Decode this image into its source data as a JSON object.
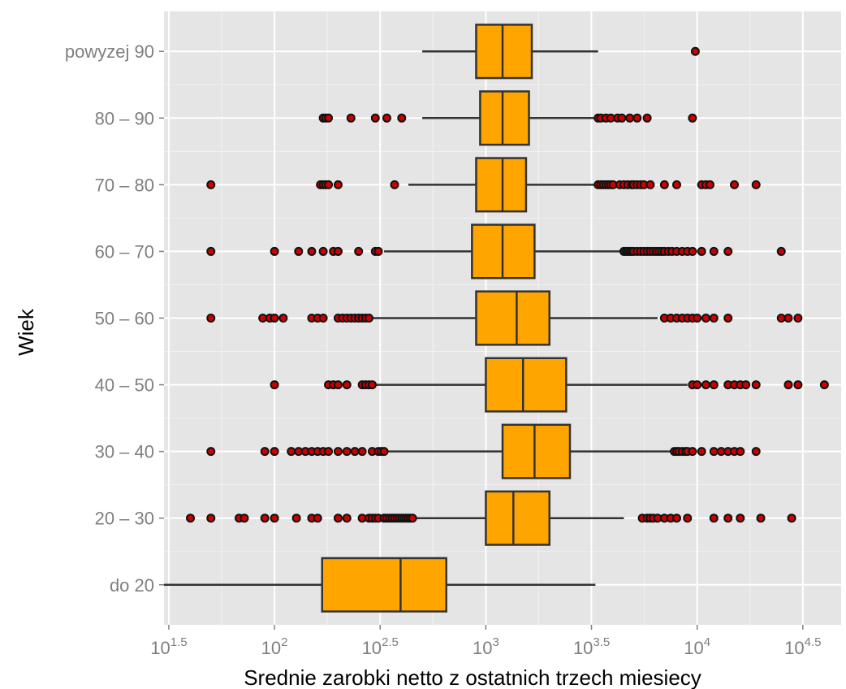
{
  "chart_data": {
    "type": "boxplot",
    "orientation": "horizontal",
    "xlabel": "Srednie zarobki netto z ostatnich trzech miesiecy",
    "ylabel": "Wiek",
    "x_scale": "log10",
    "xlim": [
      30,
      48000
    ],
    "x_ticks": [
      {
        "base": "10",
        "exp": "1.5",
        "value": 31.62
      },
      {
        "base": "10",
        "exp": "2",
        "value": 100
      },
      {
        "base": "10",
        "exp": "2.5",
        "value": 316.2
      },
      {
        "base": "10",
        "exp": "3",
        "value": 1000
      },
      {
        "base": "10",
        "exp": "3.5",
        "value": 3162
      },
      {
        "base": "10",
        "exp": "4",
        "value": 10000
      },
      {
        "base": "10",
        "exp": "4.5",
        "value": 31623
      }
    ],
    "categories": [
      "do 20",
      "20 – 30",
      "30 – 40",
      "40 – 50",
      "50 – 60",
      "60 – 70",
      "70 – 80",
      "80 – 90",
      "powyzej 90"
    ],
    "colors": {
      "panel": "#e5e5e5",
      "grid_major": "#ffffff",
      "grid_minor": "#f2f2f2",
      "box_fill": "#ffa500",
      "box_stroke": "#333333",
      "outlier_fill": "#cc0000",
      "outlier_stroke": "#111111"
    },
    "boxes": [
      {
        "category": "do 20",
        "whisker_low": 30,
        "q1": 168,
        "median": 395,
        "q3": 650,
        "whisker_high": 3300,
        "outliers": []
      },
      {
        "category": "20 – 30",
        "whisker_low": 350,
        "q1": 1000,
        "median": 1350,
        "q3": 2000,
        "whisker_high": 4500,
        "outliers": [
          40,
          50,
          68,
          72,
          90,
          100,
          127,
          150,
          160,
          200,
          220,
          260,
          280,
          290,
          300,
          310,
          330,
          340,
          350,
          360,
          370,
          380,
          390,
          400,
          410,
          420,
          430,
          440,
          450,
          5500,
          5800,
          6000,
          6200,
          6500,
          7000,
          7500,
          8000,
          9000,
          12000,
          14000,
          16000,
          20000,
          28000
        ]
      },
      {
        "category": "30 – 40",
        "whisker_low": 340,
        "q1": 1200,
        "median": 1700,
        "q3": 2500,
        "whisker_high": 7500,
        "outliers": [
          50,
          90,
          100,
          120,
          130,
          140,
          150,
          160,
          170,
          180,
          200,
          220,
          240,
          260,
          290,
          310,
          320,
          330,
          7800,
          8000,
          8200,
          8500,
          8800,
          9000,
          9500,
          10500,
          12000,
          13000,
          14000,
          15000,
          16000,
          19000
        ]
      },
      {
        "category": "40 – 50",
        "whisker_low": 270,
        "q1": 1000,
        "median": 1500,
        "q3": 2400,
        "whisker_high": 9000,
        "outliers": [
          100,
          180,
          190,
          200,
          220,
          260,
          270,
          280,
          290,
          9500,
          10000,
          11000,
          12000,
          14000,
          15000,
          16000,
          17000,
          19000,
          27000,
          30000,
          40000
        ]
      },
      {
        "category": "50 – 60",
        "whisker_low": 280,
        "q1": 900,
        "median": 1400,
        "q3": 2000,
        "whisker_high": 6500,
        "outliers": [
          50,
          88,
          95,
          100,
          110,
          150,
          160,
          170,
          200,
          210,
          220,
          230,
          240,
          250,
          260,
          270,
          280,
          7000,
          7500,
          8000,
          8500,
          9000,
          9500,
          10000,
          11000,
          12000,
          14000,
          25000,
          27000,
          30000
        ]
      },
      {
        "category": "60 – 70",
        "whisker_low": 330,
        "q1": 860,
        "median": 1200,
        "q3": 1700,
        "whisker_high": 4400,
        "outliers": [
          50,
          100,
          130,
          150,
          170,
          190,
          200,
          250,
          300,
          310,
          4500,
          4600,
          4700,
          4800,
          4900,
          5000,
          5200,
          5400,
          5600,
          5800,
          6000,
          6200,
          6400,
          6600,
          6800,
          7000,
          7300,
          7600,
          8000,
          8500,
          9000,
          9500,
          10500,
          12000,
          14000,
          25000
        ]
      },
      {
        "category": "70 – 80",
        "whisker_low": 430,
        "q1": 900,
        "median": 1200,
        "q3": 1550,
        "whisker_high": 3300,
        "outliers": [
          50,
          165,
          170,
          175,
          180,
          200,
          370,
          3400,
          3500,
          3600,
          3700,
          3800,
          3900,
          4000,
          4300,
          4500,
          4700,
          4900,
          5000,
          5200,
          5400,
          5600,
          6000,
          7000,
          8000,
          10500,
          11000,
          11500,
          15000,
          19000
        ]
      },
      {
        "category": "80 – 90",
        "whisker_low": 500,
        "q1": 940,
        "median": 1200,
        "q3": 1600,
        "whisker_high": 3300,
        "outliers": [
          170,
          175,
          180,
          230,
          300,
          340,
          400,
          3400,
          3500,
          3700,
          3900,
          4200,
          4400,
          4800,
          5200,
          5800,
          9500
        ]
      },
      {
        "category": "powyzej 90",
        "whisker_low": 500,
        "q1": 900,
        "median": 1200,
        "q3": 1650,
        "whisker_high": 3400,
        "outliers": [
          9800
        ]
      }
    ]
  }
}
